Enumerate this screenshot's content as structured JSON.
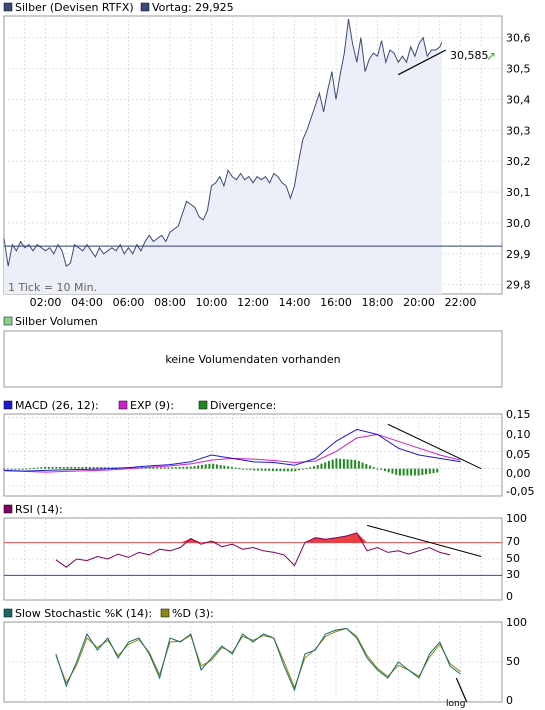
{
  "header": {
    "instrument_label": "Silber (Devisen RTFX)",
    "previous_label": "Vortag: 29,925",
    "last_value_label": "30,585",
    "tick_note": "1 Tick = 10 Min."
  },
  "volume_panel": {
    "title": "Silber Volumen",
    "message": "keine Volumendaten vorhanden"
  },
  "macd_panel": {
    "macd_label": "MACD (26, 12):",
    "exp_label": "EXP (9):",
    "divergence_label": "Divergence:",
    "yticks": [
      "0,15",
      "0,10",
      "0,05",
      "0,00",
      "-0,05"
    ]
  },
  "rsi_panel": {
    "title": "RSI (14):",
    "yticks": [
      "100",
      "70",
      "50",
      "30",
      "0"
    ]
  },
  "stoch_panel": {
    "k_label": "Slow Stochastic %K (14):",
    "d_label": "%D (3):",
    "yticks": [
      "100",
      "50",
      "0"
    ],
    "signal_label": "long"
  },
  "colors": {
    "price_line": "#3d4a78",
    "price_fill": "#eceef8",
    "baseline": "#2c3a78",
    "macd": "#1a1ad0",
    "exp": "#d020d0",
    "divergence": "#1e8a1e",
    "rsi_line": "#800060",
    "rsi_fill": "#e84040",
    "stoch_k": "#1a6a6a",
    "stoch_d": "#8a8a10",
    "arrow": "#2ab52a"
  },
  "chart_data": [
    {
      "type": "line",
      "name": "price",
      "x_tick_labels": [
        "02:00",
        "04:00",
        "06:00",
        "08:00",
        "10:00",
        "12:00",
        "14:00",
        "16:00",
        "18:00",
        "20:00",
        "22:00"
      ],
      "y_tick_labels": [
        "30,6",
        "30,5",
        "30,4",
        "30,3",
        "30,2",
        "30,1",
        "30,0",
        "29,9",
        "29,8"
      ],
      "ylim": [
        29.77,
        30.67
      ],
      "xlim": [
        0,
        24
      ],
      "reference_line": 29.925,
      "trendline": [
        [
          19.0,
          30.48
        ],
        [
          21.1,
          30.56
        ]
      ],
      "x": [
        0.0,
        0.2,
        0.4,
        0.6,
        0.8,
        1.0,
        1.2,
        1.4,
        1.6,
        1.8,
        2.0,
        2.2,
        2.4,
        2.6,
        2.8,
        3.0,
        3.2,
        3.4,
        3.6,
        3.8,
        4.0,
        4.2,
        4.4,
        4.6,
        4.8,
        5.0,
        5.2,
        5.4,
        5.6,
        5.8,
        6.0,
        6.2,
        6.4,
        6.6,
        6.8,
        7.0,
        7.2,
        7.4,
        7.6,
        7.8,
        8.0,
        8.2,
        8.4,
        8.6,
        8.8,
        9.0,
        9.2,
        9.4,
        9.6,
        9.8,
        10.0,
        10.2,
        10.4,
        10.6,
        10.8,
        11.0,
        11.2,
        11.4,
        11.6,
        11.8,
        12.0,
        12.2,
        12.4,
        12.6,
        12.8,
        13.0,
        13.2,
        13.4,
        13.6,
        13.8,
        14.0,
        14.2,
        14.4,
        14.6,
        14.8,
        15.0,
        15.2,
        15.4,
        15.6,
        15.8,
        16.0,
        16.2,
        16.4,
        16.6,
        16.8,
        17.0,
        17.2,
        17.4,
        17.6,
        17.8,
        18.0,
        18.2,
        18.4,
        18.6,
        18.8,
        19.0,
        19.2,
        19.4,
        19.6,
        19.8,
        20.0,
        20.2,
        20.4,
        20.6,
        20.8,
        21.0,
        21.1
      ],
      "y": [
        29.95,
        29.86,
        29.93,
        29.91,
        29.94,
        29.92,
        29.93,
        29.91,
        29.93,
        29.92,
        29.91,
        29.92,
        29.9,
        29.93,
        29.91,
        29.86,
        29.87,
        29.93,
        29.92,
        29.91,
        29.93,
        29.91,
        29.89,
        29.92,
        29.9,
        29.91,
        29.92,
        29.91,
        29.93,
        29.9,
        29.92,
        29.9,
        29.93,
        29.91,
        29.94,
        29.96,
        29.94,
        29.95,
        29.96,
        29.94,
        29.97,
        29.98,
        29.99,
        30.03,
        30.07,
        30.06,
        30.05,
        30.02,
        30.01,
        30.04,
        30.12,
        30.13,
        30.15,
        30.12,
        30.17,
        30.15,
        30.14,
        30.16,
        30.14,
        30.15,
        30.13,
        30.15,
        30.14,
        30.15,
        30.13,
        30.16,
        30.15,
        30.13,
        30.12,
        30.08,
        30.12,
        30.2,
        30.27,
        30.3,
        30.34,
        30.38,
        30.42,
        30.36,
        30.43,
        30.49,
        30.4,
        30.48,
        30.55,
        30.66,
        30.58,
        30.52,
        30.6,
        30.49,
        30.53,
        30.55,
        30.54,
        30.59,
        30.52,
        30.56,
        30.55,
        30.52,
        30.54,
        30.52,
        30.57,
        30.54,
        30.58,
        30.6,
        30.54,
        30.56,
        30.56,
        30.57,
        30.585
      ]
    },
    {
      "type": "bar",
      "name": "macd",
      "series_names": [
        "MACD (26, 12):",
        "EXP (9):",
        "Divergence:"
      ],
      "ylim": [
        -0.08,
        0.16
      ],
      "xlim": [
        0,
        24
      ],
      "trendline": [
        [
          18.5,
          0.13
        ],
        [
          23.0,
          0.0
        ]
      ],
      "x": [
        0,
        1,
        2,
        3,
        4,
        5,
        6,
        7,
        8,
        9,
        10,
        11,
        12,
        13,
        14,
        15,
        16,
        17,
        18,
        19,
        20,
        21,
        22
      ],
      "macd": [
        -0.005,
        -0.007,
        -0.005,
        -0.003,
        -0.002,
        0.0,
        0.003,
        0.008,
        0.012,
        0.02,
        0.04,
        0.03,
        0.02,
        0.018,
        0.01,
        0.03,
        0.08,
        0.115,
        0.1,
        0.06,
        0.04,
        0.03,
        0.02
      ],
      "exp": [
        -0.006,
        -0.008,
        -0.01,
        -0.008,
        -0.006,
        -0.004,
        0.0,
        0.004,
        0.008,
        0.014,
        0.025,
        0.03,
        0.028,
        0.024,
        0.018,
        0.022,
        0.05,
        0.09,
        0.1,
        0.08,
        0.06,
        0.04,
        0.025
      ],
      "divergence": [
        0.0,
        0.0,
        0.005,
        0.005,
        0.005,
        0.004,
        0.004,
        0.004,
        0.004,
        0.006,
        0.015,
        0.005,
        -0.005,
        -0.007,
        -0.008,
        0.008,
        0.03,
        0.025,
        0.0,
        -0.02,
        -0.02,
        -0.01,
        -0.006
      ]
    },
    {
      "type": "line",
      "name": "rsi",
      "ylim": [
        0,
        100
      ],
      "xlim": [
        0,
        24
      ],
      "reference_lines": [
        70,
        30
      ],
      "trendline": [
        [
          17.5,
          91
        ],
        [
          23.0,
          53
        ]
      ],
      "x": [
        2.5,
        3.0,
        3.5,
        4.0,
        4.5,
        5.0,
        5.5,
        6.0,
        6.5,
        7.0,
        7.5,
        8.0,
        8.5,
        9.0,
        9.5,
        10.0,
        10.5,
        11.0,
        11.5,
        12.0,
        12.5,
        13.0,
        13.5,
        14.0,
        14.5,
        15.0,
        15.5,
        16.0,
        16.5,
        17.0,
        17.5,
        18.0,
        18.5,
        19.0,
        19.5,
        20.0,
        20.5,
        21.0,
        21.5
      ],
      "y": [
        49,
        40,
        50,
        48,
        53,
        50,
        56,
        52,
        58,
        55,
        62,
        60,
        64,
        75,
        68,
        72,
        65,
        68,
        62,
        64,
        60,
        58,
        55,
        42,
        70,
        76,
        74,
        76,
        78,
        82,
        60,
        64,
        58,
        60,
        56,
        60,
        64,
        58,
        55
      ]
    },
    {
      "type": "line",
      "name": "slow_stochastic",
      "series_names": [
        "Slow Stochastic %K (14):",
        "%D (3):"
      ],
      "ylim": [
        0,
        100
      ],
      "xlim": [
        0,
        24
      ],
      "signal_arrow": [
        [
          21.8,
          30
        ],
        [
          22.3,
          0
        ]
      ],
      "x": [
        2.5,
        3.0,
        3.5,
        4.0,
        4.5,
        5.0,
        5.5,
        6.0,
        6.5,
        7.0,
        7.5,
        8.0,
        8.5,
        9.0,
        9.5,
        10.0,
        10.5,
        11.0,
        11.5,
        12.0,
        12.5,
        13.0,
        13.5,
        14.0,
        14.5,
        15.0,
        15.5,
        16.0,
        16.5,
        17.0,
        17.5,
        18.0,
        18.5,
        19.0,
        19.5,
        20.0,
        20.5,
        21.0,
        21.5,
        22.0
      ],
      "k": [
        60,
        20,
        50,
        85,
        65,
        80,
        55,
        75,
        80,
        60,
        30,
        80,
        75,
        85,
        40,
        55,
        70,
        60,
        85,
        75,
        85,
        80,
        45,
        15,
        60,
        65,
        85,
        90,
        92,
        80,
        55,
        40,
        30,
        50,
        40,
        30,
        60,
        75,
        45,
        35
      ],
      "d": [
        58,
        24,
        46,
        80,
        68,
        77,
        58,
        72,
        78,
        62,
        34,
        75,
        76,
        83,
        45,
        52,
        68,
        62,
        82,
        77,
        83,
        80,
        50,
        18,
        55,
        66,
        82,
        88,
        92,
        82,
        58,
        42,
        32,
        46,
        40,
        32,
        56,
        72,
        48,
        38
      ]
    }
  ]
}
